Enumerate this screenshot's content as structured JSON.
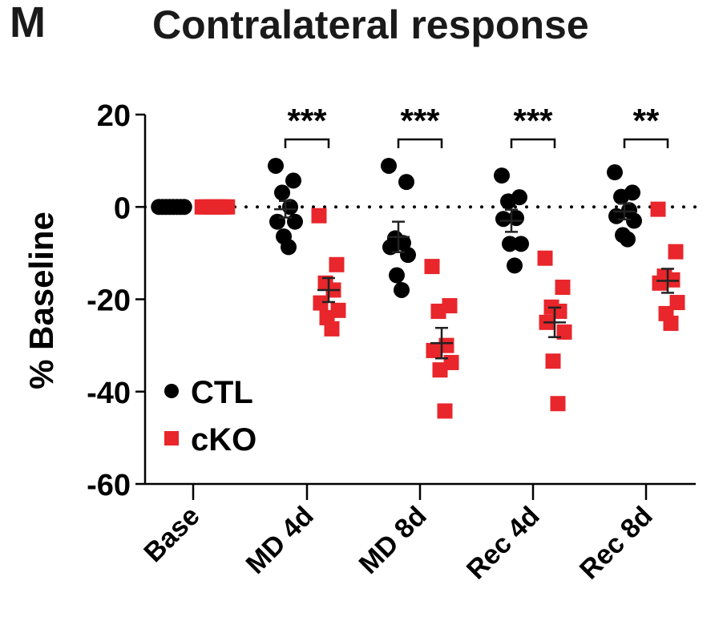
{
  "panel_label": "M",
  "chart_data": {
    "type": "scatter",
    "title": "Contralateral response",
    "xlabel": "",
    "ylabel": "% Baseline",
    "ylim": [
      -60,
      20
    ],
    "yticks": [
      20,
      0,
      -20,
      -40,
      -60
    ],
    "ytick_labels": [
      "20",
      "0",
      "-20",
      "-40",
      "-60"
    ],
    "categories": [
      "Base",
      "MD 4d",
      "MD 8d",
      "Rec 4d",
      "Rec 8d"
    ],
    "reference_line": {
      "y": 0,
      "style": "dotted"
    },
    "legend": {
      "placement": "bottom-left",
      "entries": [
        {
          "name": "CTL",
          "marker": "circle",
          "color": "#000000"
        },
        {
          "name": "cKO",
          "marker": "square",
          "color": "#e8262b"
        }
      ]
    },
    "series": [
      {
        "name": "CTL",
        "marker": "circle",
        "color": "#000000",
        "points": [
          [
            0,
            0,
            0,
            0,
            0,
            0,
            0,
            0
          ],
          [
            8.9,
            5.7,
            3.1,
            0,
            -3.2,
            -3.2,
            -6.4,
            -8.7
          ],
          [
            8.9,
            5.4,
            -6.8,
            -7.8,
            -8.7,
            -10.4,
            -14.8,
            -18.0
          ],
          [
            6.8,
            2.1,
            1.2,
            -2.4,
            -2.6,
            -8.0,
            -8.0,
            -12.7
          ],
          [
            7.5,
            3.1,
            2.2,
            -0.7,
            -2.0,
            -3.0,
            -6.1,
            -7.0
          ]
        ],
        "mean": [
          0,
          -0.5,
          -6.5,
          -3.0,
          -1.0
        ],
        "sem": [
          0,
          1.8,
          3.3,
          2.4,
          1.7
        ]
      },
      {
        "name": "cKO",
        "marker": "square",
        "color": "#e8262b",
        "points": [
          [
            0,
            0,
            0,
            0,
            0,
            0,
            0,
            0
          ],
          [
            -1.9,
            -12.5,
            -16.5,
            -18.0,
            -20.8,
            -22.4,
            -24.0,
            -26.4
          ],
          [
            -12.9,
            -21.4,
            -22.6,
            -30.0,
            -31.1,
            -33.7,
            -35.3,
            -44.2
          ],
          [
            -11.1,
            -17.4,
            -21.7,
            -22.6,
            -25.0,
            -27.1,
            -33.4,
            -42.6
          ],
          [
            -0.5,
            -9.7,
            -15.0,
            -15.8,
            -16.5,
            -20.7,
            -23.1,
            -25.2
          ]
        ],
        "mean": [
          0,
          -18.0,
          -29.5,
          -25.0,
          -16.0
        ],
        "sem": [
          0,
          2.6,
          3.3,
          3.2,
          2.6
        ]
      }
    ],
    "significance": [
      {
        "category": "MD 4d",
        "label": "***"
      },
      {
        "category": "MD 8d",
        "label": "***"
      },
      {
        "category": "Rec 4d",
        "label": "***"
      },
      {
        "category": "Rec 8d",
        "label": "**"
      }
    ]
  }
}
